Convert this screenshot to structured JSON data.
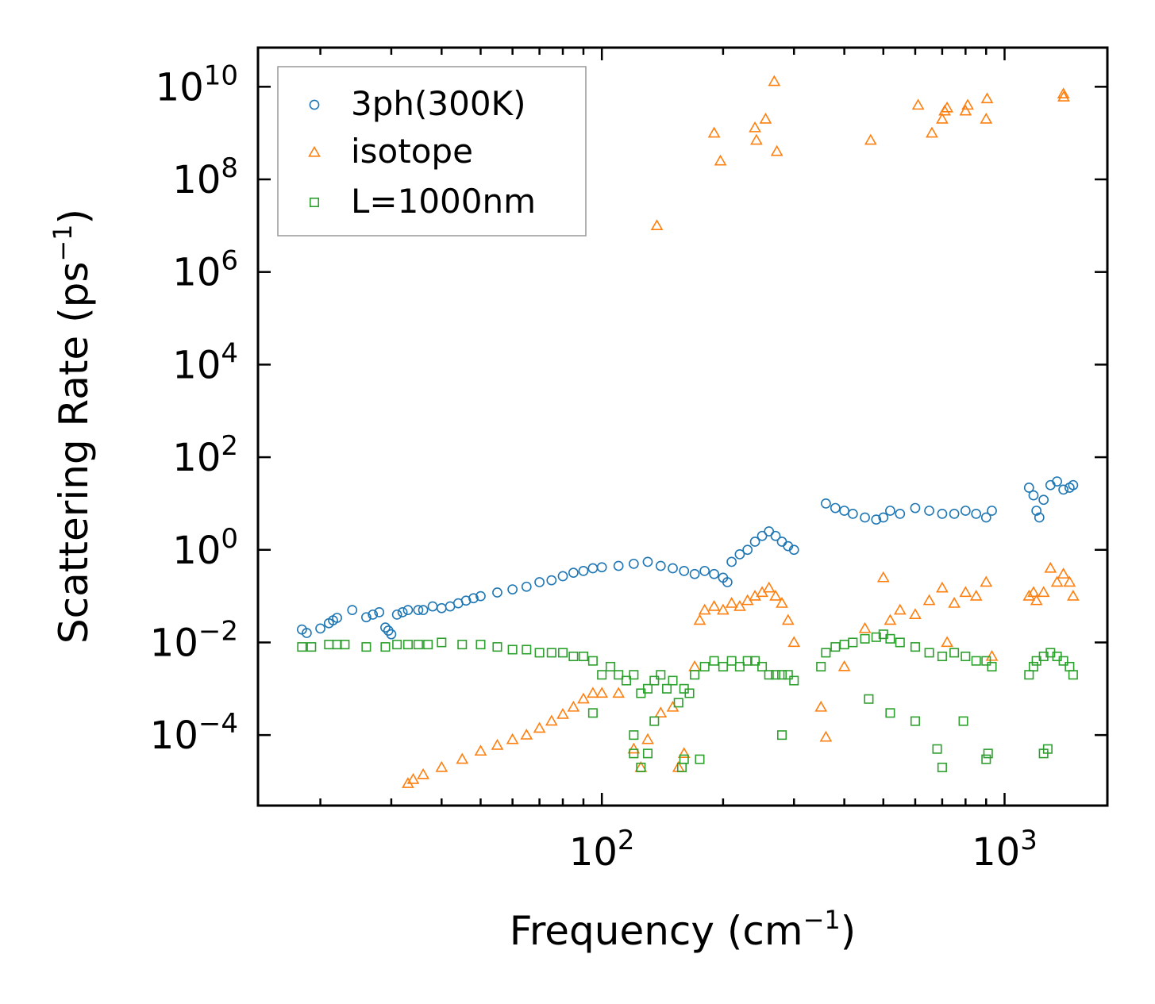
{
  "chart_data": {
    "type": "scatter",
    "title": "",
    "xlabel": "Frequency (cm",
    "xlabel_sup": "−1",
    "xlabel_end": ")",
    "ylabel": "Scattering Rate (ps",
    "ylabel_sup": "−1",
    "ylabel_end": ")",
    "xscale": "log",
    "yscale": "log",
    "xlim": [
      14,
      1800
    ],
    "ylim": [
      3e-06,
      70000000000
    ],
    "x_ticks": [
      {
        "value": 100,
        "base": "10",
        "exp": "2"
      },
      {
        "value": 1000,
        "base": "10",
        "exp": "3"
      }
    ],
    "y_ticks": [
      {
        "value": 0.0001,
        "base": "10",
        "exp": "−4"
      },
      {
        "value": 0.01,
        "base": "10",
        "exp": "−2"
      },
      {
        "value": 1,
        "base": "10",
        "exp": "0"
      },
      {
        "value": 100,
        "base": "10",
        "exp": "2"
      },
      {
        "value": 10000,
        "base": "10",
        "exp": "4"
      },
      {
        "value": 1000000,
        "base": "10",
        "exp": "6"
      },
      {
        "value": 100000000,
        "base": "10",
        "exp": "8"
      },
      {
        "value": 10000000000,
        "base": "10",
        "exp": "10"
      }
    ],
    "legend_position": "upper-left",
    "series": [
      {
        "name": "3ph(300K)",
        "marker": "circle",
        "color": "#1f77b4",
        "points": [
          [
            18,
            0.019
          ],
          [
            18.5,
            0.016
          ],
          [
            20,
            0.02
          ],
          [
            21,
            0.026
          ],
          [
            21.5,
            0.03
          ],
          [
            22,
            0.034
          ],
          [
            24,
            0.05
          ],
          [
            26,
            0.035
          ],
          [
            27,
            0.04
          ],
          [
            28,
            0.045
          ],
          [
            29,
            0.021
          ],
          [
            29.5,
            0.018
          ],
          [
            30,
            0.015
          ],
          [
            31,
            0.04
          ],
          [
            32,
            0.045
          ],
          [
            33,
            0.05
          ],
          [
            35,
            0.05
          ],
          [
            36,
            0.05
          ],
          [
            38,
            0.06
          ],
          [
            40,
            0.055
          ],
          [
            42,
            0.06
          ],
          [
            44,
            0.07
          ],
          [
            46,
            0.08
          ],
          [
            48,
            0.09
          ],
          [
            50,
            0.1
          ],
          [
            55,
            0.12
          ],
          [
            60,
            0.14
          ],
          [
            65,
            0.16
          ],
          [
            70,
            0.2
          ],
          [
            75,
            0.22
          ],
          [
            80,
            0.27
          ],
          [
            85,
            0.32
          ],
          [
            90,
            0.35
          ],
          [
            95,
            0.4
          ],
          [
            100,
            0.42
          ],
          [
            110,
            0.45
          ],
          [
            120,
            0.5
          ],
          [
            130,
            0.55
          ],
          [
            140,
            0.45
          ],
          [
            150,
            0.4
          ],
          [
            160,
            0.35
          ],
          [
            170,
            0.3
          ],
          [
            180,
            0.35
          ],
          [
            190,
            0.3
          ],
          [
            200,
            0.25
          ],
          [
            205,
            0.2
          ],
          [
            210,
            0.55
          ],
          [
            220,
            0.8
          ],
          [
            230,
            1.0
          ],
          [
            240,
            1.5
          ],
          [
            250,
            2.0
          ],
          [
            260,
            2.5
          ],
          [
            270,
            2.0
          ],
          [
            280,
            1.5
          ],
          [
            290,
            1.2
          ],
          [
            300,
            1.0
          ],
          [
            360,
            10
          ],
          [
            380,
            8
          ],
          [
            400,
            7
          ],
          [
            420,
            6
          ],
          [
            450,
            5
          ],
          [
            480,
            4.5
          ],
          [
            500,
            5
          ],
          [
            520,
            7
          ],
          [
            550,
            6
          ],
          [
            600,
            8
          ],
          [
            650,
            7
          ],
          [
            700,
            6
          ],
          [
            750,
            6
          ],
          [
            800,
            7
          ],
          [
            850,
            6
          ],
          [
            900,
            5
          ],
          [
            930,
            7
          ],
          [
            1150,
            22
          ],
          [
            1180,
            15
          ],
          [
            1200,
            7
          ],
          [
            1220,
            5
          ],
          [
            1250,
            12
          ],
          [
            1300,
            25
          ],
          [
            1350,
            30
          ],
          [
            1400,
            20
          ],
          [
            1450,
            22
          ],
          [
            1480,
            25
          ]
        ]
      },
      {
        "name": "isotope",
        "marker": "triangle",
        "color": "#ff7f0e",
        "points": [
          [
            33,
            9e-06
          ],
          [
            34,
            1.1e-05
          ],
          [
            36,
            1.4e-05
          ],
          [
            40,
            2e-05
          ],
          [
            45,
            3e-05
          ],
          [
            50,
            4.5e-05
          ],
          [
            55,
            6e-05
          ],
          [
            60,
            8e-05
          ],
          [
            65,
            0.0001
          ],
          [
            70,
            0.00014
          ],
          [
            75,
            0.0002
          ],
          [
            80,
            0.00028
          ],
          [
            85,
            0.0004
          ],
          [
            90,
            0.0006
          ],
          [
            95,
            0.0008
          ],
          [
            100,
            0.0008
          ],
          [
            110,
            0.0008
          ],
          [
            120,
            5e-05
          ],
          [
            125,
            2e-05
          ],
          [
            130,
            8e-05
          ],
          [
            140,
            0.0003
          ],
          [
            150,
            0.0004
          ],
          [
            155,
            2e-05
          ],
          [
            160,
            4e-05
          ],
          [
            170,
            0.003
          ],
          [
            175,
            0.03
          ],
          [
            180,
            0.05
          ],
          [
            190,
            0.06
          ],
          [
            200,
            0.05
          ],
          [
            210,
            0.07
          ],
          [
            220,
            0.06
          ],
          [
            230,
            0.08
          ],
          [
            240,
            0.1
          ],
          [
            250,
            0.12
          ],
          [
            260,
            0.15
          ],
          [
            270,
            0.1
          ],
          [
            280,
            0.07
          ],
          [
            290,
            0.03
          ],
          [
            300,
            0.01
          ],
          [
            350,
            0.0004
          ],
          [
            360,
            9e-05
          ],
          [
            400,
            0.003
          ],
          [
            450,
            0.02
          ],
          [
            500,
            0.25
          ],
          [
            520,
            0.03
          ],
          [
            550,
            0.05
          ],
          [
            600,
            0.04
          ],
          [
            650,
            0.08
          ],
          [
            700,
            0.15
          ],
          [
            720,
            0.01
          ],
          [
            750,
            0.07
          ],
          [
            800,
            0.12
          ],
          [
            850,
            0.1
          ],
          [
            900,
            0.2
          ],
          [
            930,
            0.005
          ],
          [
            1150,
            0.1
          ],
          [
            1180,
            0.12
          ],
          [
            1200,
            0.08
          ],
          [
            1250,
            0.12
          ],
          [
            1300,
            0.4
          ],
          [
            1350,
            0.2
          ],
          [
            1400,
            0.3
          ],
          [
            1450,
            0.2
          ],
          [
            1480,
            0.1
          ],
          [
            137,
            10000000
          ],
          [
            190,
            1000000000
          ],
          [
            197,
            250000000
          ],
          [
            240,
            1300000000
          ],
          [
            242,
            700000000
          ],
          [
            255,
            2000000000
          ],
          [
            268,
            13000000000
          ],
          [
            272,
            400000000
          ],
          [
            465,
            700000000
          ],
          [
            610,
            4000000000
          ],
          [
            660,
            1000000000
          ],
          [
            700,
            2000000000
          ],
          [
            710,
            3000000000
          ],
          [
            720,
            3500000000
          ],
          [
            800,
            3000000000
          ],
          [
            810,
            4000000000
          ],
          [
            900,
            2000000000
          ],
          [
            905,
            5500000000
          ],
          [
            1400,
            7000000000
          ],
          [
            1402,
            6000000000
          ]
        ]
      },
      {
        "name": "L=1000nm",
        "marker": "square",
        "color": "#2ca02c",
        "points": [
          [
            18,
            0.008
          ],
          [
            19,
            0.008
          ],
          [
            21,
            0.009
          ],
          [
            22,
            0.009
          ],
          [
            23,
            0.009
          ],
          [
            26,
            0.008
          ],
          [
            29,
            0.008
          ],
          [
            31,
            0.009
          ],
          [
            33,
            0.009
          ],
          [
            35,
            0.009
          ],
          [
            37,
            0.009
          ],
          [
            40,
            0.01
          ],
          [
            45,
            0.009
          ],
          [
            50,
            0.009
          ],
          [
            55,
            0.008
          ],
          [
            60,
            0.007
          ],
          [
            65,
            0.007
          ],
          [
            70,
            0.006
          ],
          [
            75,
            0.006
          ],
          [
            80,
            0.006
          ],
          [
            85,
            0.005
          ],
          [
            90,
            0.005
          ],
          [
            95,
            0.004
          ],
          [
            100,
            0.002
          ],
          [
            105,
            0.003
          ],
          [
            110,
            0.002
          ],
          [
            115,
            0.0015
          ],
          [
            120,
            0.002
          ],
          [
            125,
            0.0008
          ],
          [
            130,
            0.001
          ],
          [
            135,
            0.0015
          ],
          [
            140,
            0.002
          ],
          [
            145,
            0.001
          ],
          [
            150,
            0.0015
          ],
          [
            155,
            0.0005
          ],
          [
            160,
            0.001
          ],
          [
            165,
            0.0008
          ],
          [
            170,
            0.002
          ],
          [
            180,
            0.003
          ],
          [
            190,
            0.004
          ],
          [
            200,
            0.003
          ],
          [
            210,
            0.004
          ],
          [
            220,
            0.003
          ],
          [
            230,
            0.004
          ],
          [
            240,
            0.004
          ],
          [
            250,
            0.003
          ],
          [
            260,
            0.002
          ],
          [
            270,
            0.002
          ],
          [
            280,
            0.002
          ],
          [
            290,
            0.002
          ],
          [
            300,
            0.0015
          ],
          [
            95,
            0.0003
          ],
          [
            120,
            4e-05
          ],
          [
            125,
            2e-05
          ],
          [
            130,
            4e-05
          ],
          [
            158,
            2e-05
          ],
          [
            160,
            3e-05
          ],
          [
            175,
            3e-05
          ],
          [
            120,
            0.0001
          ],
          [
            135,
            0.0002
          ],
          [
            280,
            0.0001
          ],
          [
            350,
            0.003
          ],
          [
            360,
            0.006
          ],
          [
            380,
            0.008
          ],
          [
            400,
            0.009
          ],
          [
            420,
            0.01
          ],
          [
            450,
            0.012
          ],
          [
            480,
            0.013
          ],
          [
            500,
            0.015
          ],
          [
            520,
            0.012
          ],
          [
            550,
            0.01
          ],
          [
            600,
            0.008
          ],
          [
            650,
            0.006
          ],
          [
            700,
            0.005
          ],
          [
            750,
            0.006
          ],
          [
            800,
            0.005
          ],
          [
            850,
            0.004
          ],
          [
            900,
            0.004
          ],
          [
            930,
            0.003
          ],
          [
            460,
            0.0006
          ],
          [
            520,
            0.0003
          ],
          [
            600,
            0.0002
          ],
          [
            680,
            5e-05
          ],
          [
            700,
            2e-05
          ],
          [
            790,
            0.0002
          ],
          [
            900,
            3e-05
          ],
          [
            910,
            4e-05
          ],
          [
            1150,
            0.002
          ],
          [
            1180,
            0.003
          ],
          [
            1200,
            0.004
          ],
          [
            1250,
            0.005
          ],
          [
            1300,
            0.006
          ],
          [
            1350,
            0.005
          ],
          [
            1400,
            0.004
          ],
          [
            1450,
            0.003
          ],
          [
            1480,
            0.002
          ],
          [
            1250,
            4e-05
          ],
          [
            1280,
            5e-05
          ]
        ]
      }
    ]
  }
}
